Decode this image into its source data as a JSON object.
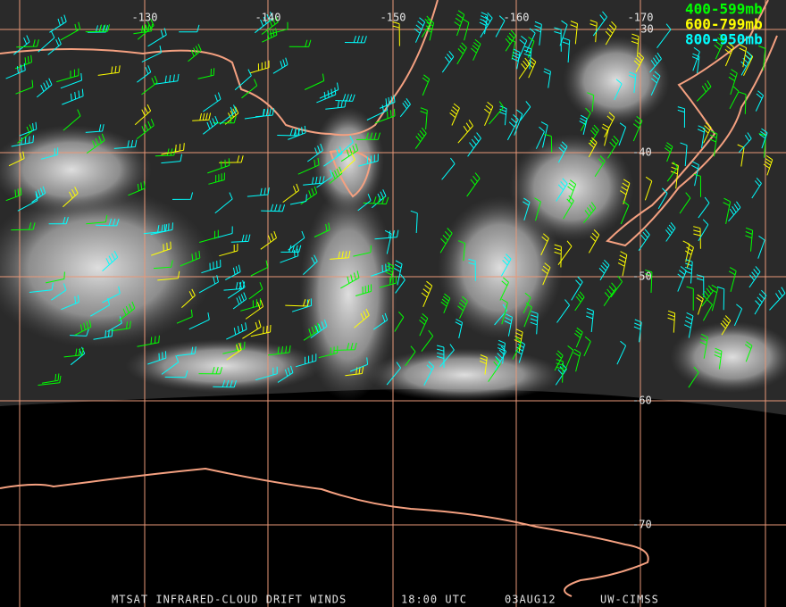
{
  "map": {
    "longitude_labels": [
      "-130",
      "-140",
      "-150",
      "-160",
      "-170"
    ],
    "latitude_labels": [
      "-30",
      "-40",
      "-50",
      "-60",
      "-70"
    ],
    "legend": [
      {
        "label": "400-599mb",
        "color": "#00ff00"
      },
      {
        "label": "600-799mb",
        "color": "#ffff00"
      },
      {
        "label": "800-950mb",
        "color": "#00ffff"
      }
    ],
    "footer": [
      "MTSAT INFRARED-CLOUD DRIFT WINDS",
      "18:00 UTC",
      "03AUG12",
      "UW-CIMSS"
    ]
  }
}
